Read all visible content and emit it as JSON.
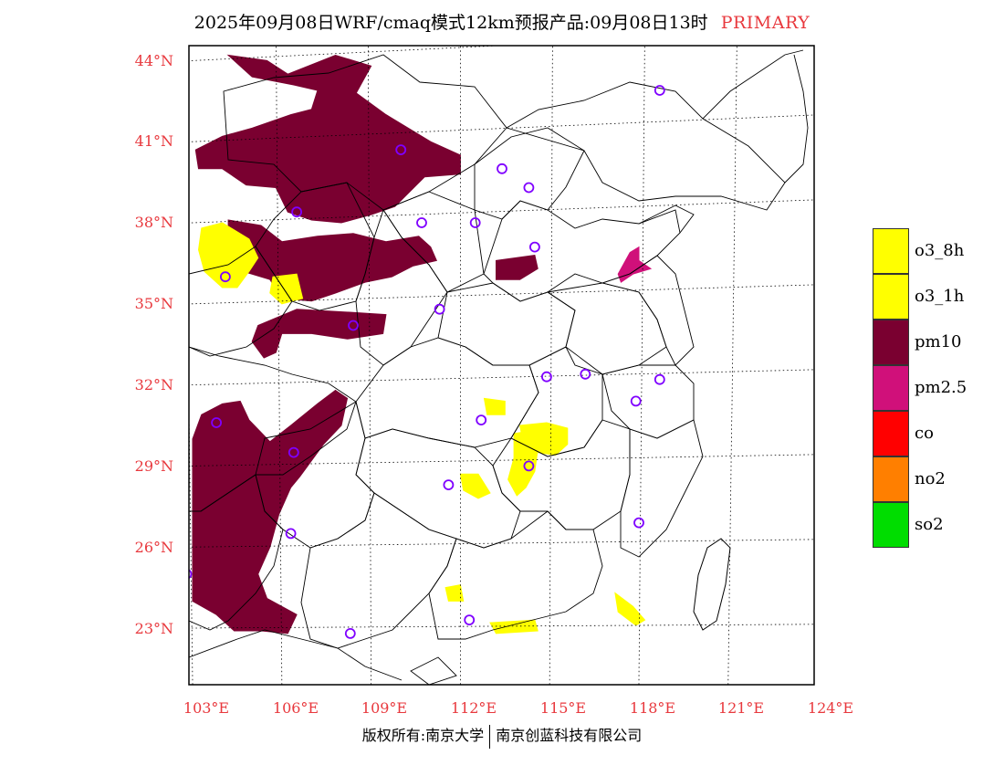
{
  "title": {
    "main": "2025年09月08日WRF/cmaq模式12km预报产品:09月08日13时",
    "tag": "PRIMARY"
  },
  "axes": {
    "lat_labels": [
      "44°N",
      "41°N",
      "38°N",
      "35°N",
      "32°N",
      "29°N",
      "26°N",
      "23°N"
    ],
    "lon_labels": [
      "103°E",
      "106°E",
      "109°E",
      "112°E",
      "115°E",
      "118°E",
      "121°E",
      "124°E"
    ]
  },
  "footer": {
    "left": "版权所有:南京大学",
    "right": "南京创蓝科技有限公司"
  },
  "legend": [
    {
      "label": "o3_8h",
      "color": "#ffff00"
    },
    {
      "label": "o3_1h",
      "color": "#ffff00"
    },
    {
      "label": "pm10",
      "color": "#7a0030"
    },
    {
      "label": "pm2.5",
      "color": "#d0107a"
    },
    {
      "label": "co",
      "color": "#ff0000"
    },
    {
      "label": "no2",
      "color": "#ff7f00"
    },
    {
      "label": "so2",
      "color": "#00dd00"
    }
  ],
  "colors": {
    "accent_text": "#e8383d",
    "pm10": "#7a0030",
    "pm25": "#d0107a",
    "o3": "#ffff00",
    "station_circle": "#7f00ff",
    "graticule": "#000000"
  },
  "map": {
    "extent": {
      "lon_min": 103,
      "lon_max": 124,
      "lat_min": 21,
      "lat_max": 44.5
    },
    "pollution_regions": [
      {
        "pollutant": "pm10",
        "points": [
          [
            104.2,
            44.2
          ],
          [
            105.5,
            44.0
          ],
          [
            106.2,
            43.5
          ],
          [
            107.8,
            44.2
          ],
          [
            109.0,
            43.8
          ],
          [
            108.5,
            42.8
          ],
          [
            109.5,
            42.0
          ],
          [
            111.0,
            41.0
          ],
          [
            112.0,
            40.5
          ],
          [
            112.0,
            39.8
          ],
          [
            110.8,
            39.7
          ],
          [
            109.8,
            38.6
          ],
          [
            109.0,
            38.3
          ],
          [
            108.0,
            38.0
          ],
          [
            107.0,
            38.1
          ],
          [
            106.2,
            38.4
          ],
          [
            105.8,
            39.3
          ],
          [
            104.8,
            39.4
          ],
          [
            104.0,
            40.0
          ],
          [
            103.2,
            40.0
          ],
          [
            103.1,
            40.7
          ],
          [
            104.0,
            41.2
          ],
          [
            105.0,
            41.5
          ],
          [
            106.3,
            42.0
          ],
          [
            107.0,
            42.2
          ],
          [
            107.2,
            42.9
          ],
          [
            106.4,
            43.1
          ],
          [
            105.0,
            43.4
          ]
        ]
      },
      {
        "pollutant": "pm10",
        "points": [
          [
            104.2,
            38.1
          ],
          [
            105.3,
            37.9
          ],
          [
            106.0,
            37.3
          ],
          [
            107.2,
            37.5
          ],
          [
            108.4,
            37.6
          ],
          [
            109.5,
            37.3
          ],
          [
            110.6,
            37.5
          ],
          [
            111.0,
            37.1
          ],
          [
            111.2,
            36.6
          ],
          [
            110.4,
            36.4
          ],
          [
            109.7,
            36.0
          ],
          [
            108.8,
            35.8
          ],
          [
            107.8,
            35.4
          ],
          [
            107.0,
            35.1
          ],
          [
            106.0,
            35.2
          ],
          [
            105.6,
            35.9
          ],
          [
            104.7,
            36.2
          ],
          [
            104.2,
            36.9
          ]
        ]
      },
      {
        "pollutant": "pm10",
        "points": [
          [
            106.5,
            34.8
          ],
          [
            108.1,
            34.7
          ],
          [
            109.5,
            34.6
          ],
          [
            109.4,
            33.9
          ],
          [
            108.2,
            33.7
          ],
          [
            107.0,
            33.9
          ],
          [
            106.0,
            33.9
          ],
          [
            105.8,
            33.2
          ],
          [
            105.4,
            33.0
          ],
          [
            105.0,
            33.6
          ],
          [
            105.2,
            34.2
          ]
        ]
      },
      {
        "pollutant": "pm10",
        "points": [
          [
            103.0,
            30.0
          ],
          [
            103.3,
            30.9
          ],
          [
            104.0,
            31.3
          ],
          [
            104.6,
            31.4
          ],
          [
            104.9,
            30.7
          ],
          [
            105.6,
            29.9
          ],
          [
            106.3,
            30.5
          ],
          [
            107.2,
            31.3
          ],
          [
            107.8,
            31.8
          ],
          [
            108.2,
            31.5
          ],
          [
            108.0,
            30.5
          ],
          [
            107.4,
            29.8
          ],
          [
            107.0,
            29.2
          ],
          [
            106.6,
            28.6
          ],
          [
            106.3,
            28.2
          ],
          [
            105.9,
            27.2
          ],
          [
            105.6,
            26.0
          ],
          [
            105.2,
            25.0
          ],
          [
            105.5,
            24.1
          ],
          [
            106.5,
            23.5
          ],
          [
            106.2,
            22.8
          ],
          [
            105.3,
            22.9
          ],
          [
            104.4,
            22.9
          ],
          [
            103.8,
            23.5
          ],
          [
            103.0,
            24.0
          ]
        ]
      },
      {
        "pollutant": "pm10",
        "points": [
          [
            113.2,
            36.6
          ],
          [
            114.5,
            36.8
          ],
          [
            114.6,
            36.3
          ],
          [
            114.0,
            35.9
          ],
          [
            113.2,
            35.9
          ]
        ]
      },
      {
        "pollutant": "pm25",
        "points": [
          [
            117.7,
            36.9
          ],
          [
            118.0,
            37.1
          ],
          [
            118.0,
            36.6
          ],
          [
            118.4,
            36.3
          ],
          [
            117.8,
            36.1
          ],
          [
            117.4,
            35.8
          ],
          [
            117.3,
            36.1
          ]
        ]
      },
      {
        "pollutant": "o3",
        "points": [
          [
            103.3,
            37.8
          ],
          [
            104.0,
            38.0
          ],
          [
            104.9,
            37.4
          ],
          [
            105.2,
            36.7
          ],
          [
            104.9,
            36.2
          ],
          [
            104.5,
            35.6
          ],
          [
            104.0,
            35.6
          ],
          [
            103.4,
            36.2
          ],
          [
            103.2,
            37.0
          ]
        ]
      },
      {
        "pollutant": "o3",
        "points": [
          [
            105.7,
            36.0
          ],
          [
            106.5,
            36.1
          ],
          [
            106.7,
            35.2
          ],
          [
            106.0,
            35.0
          ],
          [
            105.6,
            35.4
          ]
        ]
      },
      {
        "pollutant": "o3",
        "points": [
          [
            112.8,
            31.5
          ],
          [
            113.5,
            31.4
          ],
          [
            113.5,
            30.9
          ],
          [
            112.9,
            30.9
          ]
        ]
      },
      {
        "pollutant": "o3",
        "points": [
          [
            113.8,
            30.2
          ],
          [
            114.4,
            30.3
          ],
          [
            114.6,
            29.6
          ],
          [
            114.5,
            28.8
          ],
          [
            114.2,
            28.2
          ],
          [
            113.9,
            27.9
          ],
          [
            113.6,
            28.5
          ],
          [
            113.8,
            29.3
          ]
        ]
      },
      {
        "pollutant": "o3",
        "points": [
          [
            114.0,
            30.5
          ],
          [
            114.9,
            30.6
          ],
          [
            115.6,
            30.4
          ],
          [
            115.6,
            29.8
          ],
          [
            115.2,
            29.4
          ],
          [
            114.6,
            29.5
          ],
          [
            114.1,
            29.9
          ]
        ]
      },
      {
        "pollutant": "o3",
        "points": [
          [
            112.0,
            28.7
          ],
          [
            112.6,
            28.7
          ],
          [
            113.0,
            28.0
          ],
          [
            112.6,
            27.8
          ],
          [
            112.1,
            28.1
          ]
        ]
      },
      {
        "pollutant": "o3",
        "points": [
          [
            117.2,
            24.3
          ],
          [
            117.8,
            23.8
          ],
          [
            118.2,
            23.3
          ],
          [
            117.9,
            23.1
          ],
          [
            117.3,
            23.6
          ]
        ]
      },
      {
        "pollutant": "o3",
        "points": [
          [
            111.5,
            24.5
          ],
          [
            112.0,
            24.6
          ],
          [
            112.1,
            24.0
          ],
          [
            111.6,
            24.0
          ]
        ]
      },
      {
        "pollutant": "o3",
        "points": [
          [
            113.0,
            23.2
          ],
          [
            114.5,
            23.3
          ],
          [
            114.6,
            22.9
          ],
          [
            113.2,
            22.8
          ]
        ]
      }
    ],
    "stations": [
      [
        118.7,
        42.9
      ],
      [
        110.0,
        40.7
      ],
      [
        113.4,
        40.0
      ],
      [
        114.3,
        39.3
      ],
      [
        106.5,
        38.4
      ],
      [
        110.7,
        38.0
      ],
      [
        112.5,
        38.0
      ],
      [
        114.5,
        37.1
      ],
      [
        104.1,
        36.0
      ],
      [
        111.3,
        34.8
      ],
      [
        108.4,
        34.2
      ],
      [
        114.9,
        32.3
      ],
      [
        116.2,
        32.4
      ],
      [
        118.7,
        32.2
      ],
      [
        112.7,
        30.7
      ],
      [
        103.8,
        30.6
      ],
      [
        117.9,
        31.4
      ],
      [
        106.4,
        29.5
      ],
      [
        114.3,
        29.0
      ],
      [
        111.6,
        28.3
      ],
      [
        118.0,
        26.9
      ],
      [
        106.3,
        26.5
      ],
      [
        102.8,
        25.0
      ],
      [
        112.3,
        23.3
      ],
      [
        108.3,
        22.8
      ]
    ]
  }
}
